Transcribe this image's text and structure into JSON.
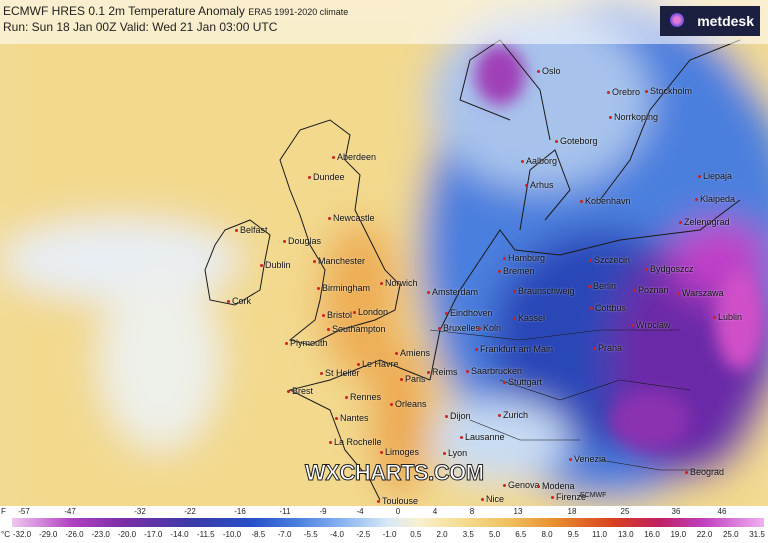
{
  "header": {
    "title": "ECMWF HRES 0.1  2m Temperature Anomaly",
    "climate": "ERA5 1991-2020 climate",
    "run": "Run: Sun 18 Jan 00Z Valid: Wed 21 Jan 03:00 UTC"
  },
  "logo": "metdesk",
  "watermark": "WXCHARTS.COM",
  "small_logo": "ECMWF",
  "cities": [
    "Oslo",
    "Orebro",
    "Stockholm",
    "Norrkoping",
    "Goteborg",
    "Aalborg",
    "Arhus",
    "Kobenhavn",
    "Liepaja",
    "Klaipeda",
    "Zelenograd",
    "Aberdeen",
    "Dundee",
    "Newcastle",
    "Belfast",
    "Douglas",
    "Dublin",
    "Manchester",
    "Norwich",
    "Birmingham",
    "Cork",
    "London",
    "Bristol",
    "Southampton",
    "Plymouth",
    "Amsterdam",
    "Hamburg",
    "Bremen",
    "Szczecin",
    "Bydgoszcz",
    "Berlin",
    "Poznan",
    "Warszawa",
    "Braunschweig",
    "Eindhoven",
    "Bruxelles",
    "Koln",
    "Kassel",
    "Cottbus",
    "Wroclaw",
    "Lublin",
    "Frankfurt am Main",
    "Praha",
    "Amiens",
    "Le Havre",
    "St Helier",
    "Paris",
    "Reims",
    "Saarbrucken",
    "Stuttgart",
    "Brest",
    "Rennes",
    "Nantes",
    "Orleans",
    "Dijon",
    "Zurich",
    "La Rochelle",
    "Limoges",
    "Lausanne",
    "Lyon",
    "Venezia",
    "Genova",
    "Modena",
    "Firenze",
    "Nice",
    "Toulouse",
    "Beograd"
  ],
  "colorbar": {
    "f_unit": "F",
    "f_labels": [
      "-57",
      "-47",
      "-32",
      "-22",
      "-16",
      "-11",
      "-9",
      "-4",
      "0",
      "4",
      "8",
      "13",
      "18",
      "25",
      "36",
      "46"
    ],
    "c_unit": "°C",
    "c_labels": [
      "-32.0",
      "-29.0",
      "-26.0",
      "-23.0",
      "-20.0",
      "-17.0",
      "-14.0",
      "-11.5",
      "-10.0",
      "-8.5",
      "-7.0",
      "-5.5",
      "-4.0",
      "-2.5",
      "-1.0",
      "0.5",
      "2.0",
      "3.5",
      "5.0",
      "6.5",
      "8.0",
      "9.5",
      "11.0",
      "13.0",
      "16.0",
      "19.0",
      "22.0",
      "25.0",
      "31.5"
    ]
  }
}
